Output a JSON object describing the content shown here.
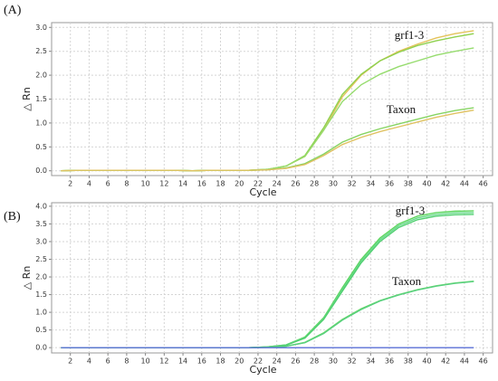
{
  "chart_data": [
    {
      "type": "line",
      "panel_label": "(A)",
      "x_label": "Cycle",
      "y_label": "△ Rn",
      "annotations": [
        "grf1-3",
        "Taxon"
      ],
      "x": [
        1,
        3,
        5,
        7,
        9,
        11,
        13,
        15,
        17,
        19,
        21,
        23,
        25,
        27,
        29,
        31,
        33,
        35,
        37,
        39,
        41,
        43,
        45
      ],
      "xlim": [
        0,
        47
      ],
      "xticks": [
        2,
        4,
        6,
        8,
        10,
        12,
        14,
        16,
        18,
        20,
        22,
        24,
        26,
        28,
        30,
        32,
        34,
        36,
        38,
        40,
        42,
        44,
        46
      ],
      "ylim": [
        -0.1,
        3.1
      ],
      "yticks": [
        {
          "value": 0,
          "label": "0.0"
        },
        {
          "value": 0.5,
          "label": "0.5"
        },
        {
          "value": 1,
          "label": "1.0"
        },
        {
          "value": 1.5,
          "label": "1.5"
        },
        {
          "value": 2,
          "label": "2.0"
        },
        {
          "value": 2.5,
          "label": "2.5"
        },
        {
          "value": 3,
          "label": "3.0"
        }
      ],
      "grid": true,
      "series": [
        {
          "color": "#e3c35a",
          "values": [
            0,
            0.01,
            0.01,
            0.01,
            0.01,
            0.01,
            0.01,
            0,
            0.01,
            0.01,
            0.01,
            0.03,
            0.1,
            0.3,
            0.85,
            1.55,
            2.0,
            2.3,
            2.5,
            2.65,
            2.78,
            2.87,
            2.93
          ]
        },
        {
          "color": "#8fd14f",
          "values": [
            0,
            0.01,
            0.01,
            0.01,
            0.01,
            0.01,
            0.01,
            0,
            0.01,
            0.01,
            0.01,
            0.03,
            0.1,
            0.32,
            0.9,
            1.6,
            2.02,
            2.3,
            2.48,
            2.62,
            2.72,
            2.8,
            2.87
          ]
        },
        {
          "color": "#96dc6e",
          "values": [
            0,
            0.01,
            0.01,
            0.01,
            0.01,
            0.01,
            0.01,
            0,
            0.01,
            0.01,
            0.01,
            0.03,
            0.1,
            0.3,
            0.85,
            1.45,
            1.8,
            2.02,
            2.18,
            2.3,
            2.42,
            2.5,
            2.57
          ]
        },
        {
          "color": "#86d462",
          "values": [
            0,
            0.01,
            0.01,
            0.01,
            0.01,
            0.01,
            0.01,
            0,
            0.01,
            0.01,
            0.01,
            0.02,
            0.06,
            0.15,
            0.35,
            0.6,
            0.76,
            0.88,
            0.98,
            1.08,
            1.18,
            1.26,
            1.32
          ]
        },
        {
          "color": "#e0c262",
          "values": [
            0,
            0.01,
            0.01,
            0.01,
            0.01,
            0.01,
            0.01,
            0,
            0.01,
            0.01,
            0.01,
            0.02,
            0.05,
            0.13,
            0.32,
            0.55,
            0.7,
            0.82,
            0.92,
            1.02,
            1.12,
            1.2,
            1.27
          ]
        }
      ]
    },
    {
      "type": "line",
      "panel_label": "(B)",
      "x_label": "Cycle",
      "y_label": "△ Rn",
      "annotations": [
        "grf1-3",
        "Taxon"
      ],
      "x": [
        1,
        3,
        5,
        7,
        9,
        11,
        13,
        15,
        17,
        19,
        21,
        23,
        25,
        27,
        29,
        31,
        33,
        35,
        37,
        39,
        41,
        43,
        45
      ],
      "xlim": [
        0,
        47
      ],
      "xticks": [
        2,
        4,
        6,
        8,
        10,
        12,
        14,
        16,
        18,
        20,
        22,
        24,
        26,
        28,
        30,
        32,
        34,
        36,
        38,
        40,
        42,
        44,
        46
      ],
      "ylim": [
        -0.15,
        4.1
      ],
      "yticks": [
        {
          "value": 0,
          "label": "0.0"
        },
        {
          "value": 0.5,
          "label": "0.5"
        },
        {
          "value": 1,
          "label": "1.0"
        },
        {
          "value": 1.5,
          "label": "1.5"
        },
        {
          "value": 2,
          "label": "2.0"
        },
        {
          "value": 2.5,
          "label": "2.5"
        },
        {
          "value": 3,
          "label": "3.0"
        },
        {
          "value": 3.5,
          "label": "3.5"
        },
        {
          "value": 4,
          "label": "4.0"
        }
      ],
      "grid": true,
      "series": [
        {
          "color": "#5cd65c",
          "values": [
            0,
            0,
            0,
            0,
            0,
            0,
            0,
            0,
            0,
            0,
            0,
            0.02,
            0.08,
            0.3,
            0.85,
            1.7,
            2.5,
            3.1,
            3.5,
            3.72,
            3.82,
            3.86,
            3.87
          ]
        },
        {
          "color": "#66d98a",
          "values": [
            0,
            0,
            0,
            0,
            0,
            0,
            0,
            0,
            0,
            0,
            0,
            0.02,
            0.08,
            0.28,
            0.82,
            1.65,
            2.45,
            3.05,
            3.45,
            3.67,
            3.77,
            3.81,
            3.82
          ]
        },
        {
          "color": "#4fcf6f",
          "values": [
            0,
            0,
            0,
            0,
            0,
            0,
            0,
            0,
            0,
            0,
            0,
            0.02,
            0.07,
            0.27,
            0.8,
            1.6,
            2.4,
            3.0,
            3.4,
            3.62,
            3.72,
            3.76,
            3.77
          ]
        },
        {
          "color": "#6ad86a",
          "values": [
            0,
            0,
            0,
            0,
            0,
            0,
            0,
            0,
            0,
            0,
            0,
            0.01,
            0.04,
            0.15,
            0.42,
            0.8,
            1.1,
            1.33,
            1.5,
            1.64,
            1.75,
            1.83,
            1.88
          ]
        },
        {
          "color": "#58d07e",
          "values": [
            0,
            0,
            0,
            0,
            0,
            0,
            0,
            0,
            0,
            0,
            0,
            0.01,
            0.04,
            0.14,
            0.4,
            0.78,
            1.08,
            1.32,
            1.49,
            1.63,
            1.74,
            1.82,
            1.87
          ]
        },
        {
          "color": "#5a6fd6",
          "values": [
            0,
            0,
            0,
            0,
            0,
            0,
            0,
            0,
            0,
            0,
            0,
            0,
            0,
            0,
            0,
            0,
            0,
            0,
            0,
            0,
            0,
            0,
            0
          ]
        }
      ]
    }
  ]
}
